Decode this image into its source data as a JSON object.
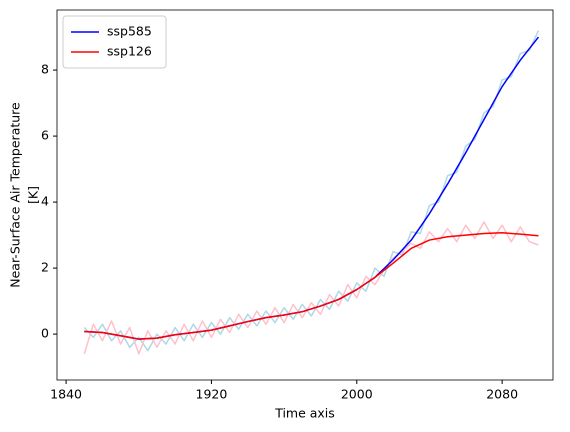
{
  "chart_data": {
    "type": "line",
    "xlabel": "Time axis",
    "ylabel": [
      "Near-Surface Air Temperature",
      "[K]"
    ],
    "xlim": [
      1835,
      2108
    ],
    "ylim": [
      -1.39,
      9.82
    ],
    "xticks": [
      1840,
      1920,
      2000,
      2080
    ],
    "yticks": [
      0,
      2,
      4,
      6,
      8
    ],
    "grid": false,
    "legend": "upper-left",
    "series": [
      {
        "color": "#add8e6",
        "x": [
          1850,
          1855,
          1860,
          1865,
          1870,
          1875,
          1880,
          1885,
          1890,
          1895,
          1900,
          1905,
          1910,
          1915,
          1920,
          1925,
          1930,
          1935,
          1940,
          1945,
          1950,
          1955,
          1960,
          1965,
          1970,
          1975,
          1980,
          1985,
          1990,
          1995,
          2000,
          2005,
          2010,
          2015,
          2020,
          2025,
          2030,
          2035,
          2040,
          2045,
          2050,
          2055,
          2060,
          2065,
          2070,
          2075,
          2080,
          2085,
          2090,
          2095,
          2100
        ],
        "values": [
          0.2,
          -0.1,
          0.3,
          -0.2,
          0.1,
          -0.4,
          -0.1,
          -0.5,
          0.0,
          -0.3,
          0.2,
          -0.2,
          0.3,
          -0.1,
          0.35,
          0.0,
          0.5,
          0.15,
          0.6,
          0.25,
          0.7,
          0.35,
          0.8,
          0.45,
          0.9,
          0.55,
          1.05,
          0.75,
          1.3,
          1.0,
          1.55,
          1.3,
          2.0,
          1.75,
          2.5,
          2.4,
          3.1,
          3.05,
          3.9,
          4.0,
          4.8,
          4.9,
          5.7,
          5.9,
          6.7,
          6.9,
          7.7,
          7.8,
          8.5,
          8.6,
          9.2
        ]
      },
      {
        "color": "#ffc0cb",
        "x": [
          1850,
          1855,
          1860,
          1865,
          1870,
          1875,
          1880,
          1885,
          1890,
          1895,
          1900,
          1905,
          1910,
          1915,
          1920,
          1925,
          1930,
          1935,
          1940,
          1945,
          1950,
          1955,
          1960,
          1965,
          1970,
          1975,
          1980,
          1985,
          1990,
          1995,
          2000,
          2005,
          2010,
          2015,
          2020,
          2025,
          2030,
          2035,
          2040,
          2045,
          2050,
          2055,
          2060,
          2065,
          2070,
          2075,
          2080,
          2085,
          2090,
          2095,
          2100
        ],
        "values": [
          -0.6,
          0.3,
          -0.2,
          0.4,
          -0.3,
          0.2,
          -0.6,
          0.1,
          -0.4,
          0.1,
          -0.3,
          0.3,
          -0.2,
          0.4,
          -0.1,
          0.45,
          0.05,
          0.6,
          0.2,
          0.7,
          0.3,
          0.8,
          0.35,
          0.9,
          0.5,
          0.95,
          0.6,
          1.2,
          0.85,
          1.5,
          1.1,
          1.75,
          1.5,
          1.95,
          2.3,
          2.5,
          2.75,
          2.6,
          3.1,
          2.8,
          3.2,
          2.8,
          3.3,
          2.9,
          3.4,
          2.9,
          3.3,
          2.8,
          3.25,
          2.8,
          2.7
        ]
      },
      {
        "name": "ssp585",
        "color": "#0000ff",
        "x": [
          1850,
          1860,
          1870,
          1880,
          1890,
          1900,
          1910,
          1920,
          1930,
          1940,
          1950,
          1960,
          1970,
          1980,
          1990,
          2000,
          2010,
          2020,
          2030,
          2040,
          2050,
          2060,
          2070,
          2080,
          2090,
          2100
        ],
        "values": [
          0.08,
          0.05,
          -0.05,
          -0.15,
          -0.12,
          -0.02,
          0.05,
          0.12,
          0.25,
          0.38,
          0.5,
          0.58,
          0.68,
          0.85,
          1.05,
          1.35,
          1.72,
          2.25,
          2.85,
          3.65,
          4.55,
          5.5,
          6.5,
          7.5,
          8.3,
          9.0
        ]
      },
      {
        "name": "ssp126",
        "color": "#ff0000",
        "x": [
          1850,
          1860,
          1870,
          1880,
          1890,
          1900,
          1910,
          1920,
          1930,
          1940,
          1950,
          1960,
          1970,
          1980,
          1990,
          2000,
          2010,
          2020,
          2030,
          2040,
          2050,
          2060,
          2070,
          2080,
          2090,
          2100
        ],
        "values": [
          0.08,
          0.05,
          -0.05,
          -0.15,
          -0.12,
          -0.02,
          0.05,
          0.12,
          0.25,
          0.38,
          0.5,
          0.58,
          0.68,
          0.85,
          1.05,
          1.35,
          1.72,
          2.15,
          2.6,
          2.85,
          2.95,
          3.0,
          3.05,
          3.07,
          3.03,
          2.98
        ]
      }
    ]
  }
}
